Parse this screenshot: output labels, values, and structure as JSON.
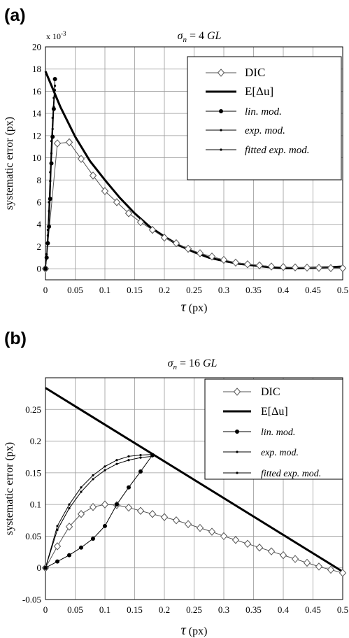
{
  "chart_data": [
    {
      "panel": "(a)",
      "type": "line",
      "title": "σn = 4 GL",
      "title_parts": {
        "sigma": "σ",
        "sub": "n",
        "rest": " = 4 ",
        "unit": "GL"
      },
      "scale_note": "x 10-3",
      "scale_parts": {
        "base": "x 10",
        "exp": "-3"
      },
      "xlabel": "τ (px)",
      "xlabel_parts": {
        "symbol": "τ",
        "unit": "(px)"
      },
      "ylabel": "systematic error (px)",
      "xlim": [
        0,
        0.5
      ],
      "ylim": [
        -1,
        20
      ],
      "xticks": [
        0,
        0.05,
        0.1,
        0.15,
        0.2,
        0.25,
        0.3,
        0.35,
        0.4,
        0.45,
        0.5
      ],
      "xtick_labels": [
        "0",
        "0.05",
        "0.1",
        "0.15",
        "0.2",
        "0.25",
        "0.3",
        "0.35",
        "0.4",
        "0.45",
        "0.5"
      ],
      "yticks": [
        0,
        2,
        4,
        6,
        8,
        10,
        12,
        14,
        16,
        18,
        20
      ],
      "ytick_labels": [
        "0",
        "2",
        "4",
        "6",
        "8",
        "10",
        "12",
        "14",
        "16",
        "18",
        "20"
      ],
      "grid": true,
      "legend_position": "top-right",
      "series": [
        {
          "name": "DIC",
          "style": "diamond",
          "x": [
            0,
            0.02,
            0.04,
            0.06,
            0.08,
            0.1,
            0.12,
            0.14,
            0.16,
            0.18,
            0.2,
            0.22,
            0.24,
            0.26,
            0.28,
            0.3,
            0.32,
            0.34,
            0.36,
            0.38,
            0.4,
            0.42,
            0.44,
            0.46,
            0.48,
            0.5
          ],
          "y": [
            0,
            11.3,
            11.4,
            9.9,
            8.4,
            7.0,
            6.0,
            5.0,
            4.2,
            3.5,
            2.8,
            2.3,
            1.8,
            1.4,
            1.1,
            0.8,
            0.55,
            0.4,
            0.3,
            0.2,
            0.15,
            0.12,
            0.1,
            0.08,
            0.06,
            0.05
          ]
        },
        {
          "name": "E[Δu]",
          "style": "thick",
          "x": [
            0,
            0.025,
            0.05,
            0.075,
            0.1,
            0.125,
            0.15,
            0.175,
            0.2,
            0.225,
            0.25,
            0.275,
            0.3,
            0.325,
            0.35,
            0.375,
            0.4,
            0.425,
            0.45,
            0.475,
            0.5
          ],
          "y": [
            17.8,
            14.6,
            11.9,
            9.7,
            8.0,
            6.4,
            5.0,
            3.8,
            2.9,
            2.1,
            1.5,
            1.0,
            0.7,
            0.45,
            0.3,
            0.15,
            0.05,
            0.05,
            0.08,
            0.12,
            0.2
          ]
        },
        {
          "name": "lin. mod.",
          "style": "dot-big",
          "x": [
            0,
            0.002,
            0.004,
            0.006,
            0.008,
            0.01,
            0.012,
            0.014,
            0.016
          ],
          "y": [
            0,
            1.0,
            2.3,
            3.8,
            6.3,
            9.5,
            11.9,
            14.4,
            17.1
          ]
        },
        {
          "name": "exp. mod.",
          "style": "dot-small",
          "x": [
            0,
            0.002,
            0.004,
            0.006,
            0.008,
            0.01,
            0.012,
            0.014,
            0.016
          ],
          "y": [
            0,
            1.3,
            3.5,
            6.0,
            8.7,
            11.5,
            13.6,
            15.4,
            16.5
          ]
        },
        {
          "name": "fitted exp. mod.",
          "style": "dot-small",
          "x": [
            0,
            0.002,
            0.004,
            0.006,
            0.008,
            0.01,
            0.012,
            0.014,
            0.016
          ],
          "y": [
            0,
            1.1,
            3.0,
            5.2,
            7.9,
            10.4,
            12.6,
            14.6,
            16.1
          ]
        }
      ]
    },
    {
      "panel": "(b)",
      "type": "line",
      "title": "σn = 16 GL",
      "title_parts": {
        "sigma": "σ",
        "sub": "n",
        "rest": " = 16 ",
        "unit": "GL"
      },
      "xlabel": "τ (px)",
      "xlabel_parts": {
        "symbol": "τ",
        "unit": "(px)"
      },
      "ylabel": "systematic error (px)",
      "xlim": [
        0,
        0.5
      ],
      "ylim": [
        -0.05,
        0.3
      ],
      "xticks": [
        0,
        0.05,
        0.1,
        0.15,
        0.2,
        0.25,
        0.3,
        0.35,
        0.4,
        0.45,
        0.5
      ],
      "xtick_labels": [
        "0",
        "0.05",
        "0.1",
        "0.15",
        "0.2",
        "0.25",
        "0.3",
        "0.35",
        "0.4",
        "0.45",
        "0.5"
      ],
      "yticks": [
        -0.05,
        0,
        0.05,
        0.1,
        0.15,
        0.2,
        0.25
      ],
      "ytick_labels": [
        "-0.05",
        "0",
        "0.05",
        "0.1",
        "0.15",
        "0.2",
        "0.25"
      ],
      "grid": true,
      "legend_position": "top-right",
      "series": [
        {
          "name": "DIC",
          "style": "diamond",
          "x": [
            0,
            0.02,
            0.04,
            0.06,
            0.08,
            0.1,
            0.12,
            0.14,
            0.16,
            0.18,
            0.2,
            0.22,
            0.24,
            0.26,
            0.28,
            0.3,
            0.32,
            0.34,
            0.36,
            0.38,
            0.4,
            0.42,
            0.44,
            0.46,
            0.48,
            0.5
          ],
          "y": [
            0,
            0.034,
            0.065,
            0.085,
            0.096,
            0.1,
            0.099,
            0.095,
            0.09,
            0.085,
            0.08,
            0.075,
            0.069,
            0.063,
            0.057,
            0.05,
            0.044,
            0.038,
            0.032,
            0.026,
            0.02,
            0.014,
            0.008,
            0.002,
            -0.003,
            -0.008
          ]
        },
        {
          "name": "E[Δu]",
          "style": "thick",
          "x": [
            0,
            0.5
          ],
          "y": [
            0.284,
            -0.006
          ]
        },
        {
          "name": "lin. mod.",
          "style": "dot-big",
          "x": [
            0,
            0.02,
            0.04,
            0.06,
            0.08,
            0.1,
            0.12,
            0.14,
            0.16,
            0.18
          ],
          "y": [
            0,
            0.01,
            0.02,
            0.032,
            0.046,
            0.066,
            0.1,
            0.127,
            0.152,
            0.178
          ]
        },
        {
          "name": "exp. mod.",
          "style": "dot-small",
          "x": [
            0,
            0.02,
            0.04,
            0.06,
            0.08,
            0.1,
            0.12,
            0.14,
            0.16,
            0.18
          ],
          "y": [
            0,
            0.066,
            0.1,
            0.127,
            0.146,
            0.16,
            0.17,
            0.176,
            0.178,
            0.179
          ]
        },
        {
          "name": "fitted exp. mod.",
          "style": "dot-small",
          "x": [
            0,
            0.02,
            0.04,
            0.06,
            0.08,
            0.1,
            0.12,
            0.14,
            0.16,
            0.18
          ],
          "y": [
            0,
            0.06,
            0.094,
            0.12,
            0.14,
            0.154,
            0.164,
            0.17,
            0.174,
            0.176
          ]
        }
      ]
    }
  ]
}
